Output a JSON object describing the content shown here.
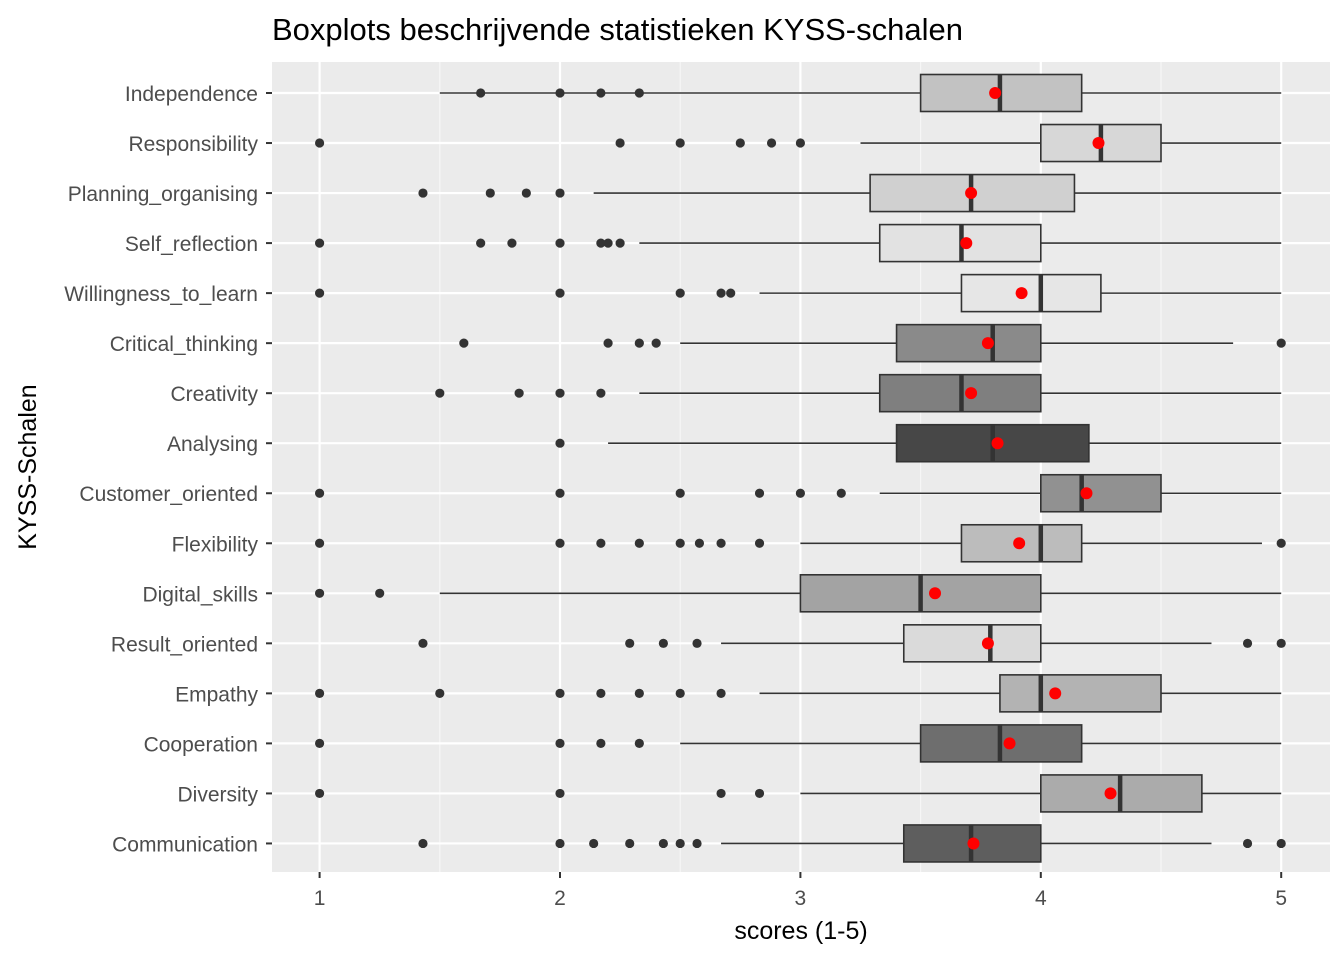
{
  "chart_data": {
    "type": "boxplot",
    "title": "Boxplots beschrijvende statistieken KYSS-schalen",
    "xlabel": "scores (1-5)",
    "ylabel": "KYSS-Schalen",
    "xlim": [
      0.8,
      5.2
    ],
    "xticks": [
      "1",
      "2",
      "3",
      "4",
      "5"
    ],
    "grid": true,
    "mean_marker_color": "#ff0000",
    "series": [
      {
        "name": "Independence",
        "whisker_low": 1.5,
        "q1": 3.5,
        "median": 3.83,
        "q3": 4.17,
        "whisker_high": 5.0,
        "mean": 3.81,
        "fill": "#c2c2c2",
        "outliers": [
          1.67,
          2.0,
          2.17,
          2.33
        ]
      },
      {
        "name": "Responsibility",
        "whisker_low": 3.25,
        "q1": 4.0,
        "median": 4.25,
        "q3": 4.5,
        "whisker_high": 5.0,
        "mean": 4.24,
        "fill": "#d7d7d7",
        "outliers": [
          1.0,
          2.25,
          2.5,
          2.75,
          2.88,
          3.0
        ]
      },
      {
        "name": "Planning_organising",
        "whisker_low": 2.14,
        "q1": 3.29,
        "median": 3.71,
        "q3": 4.14,
        "whisker_high": 5.0,
        "mean": 3.71,
        "fill": "#d0d0d0",
        "outliers": [
          1.43,
          1.71,
          1.86,
          2.0
        ]
      },
      {
        "name": "Self_reflection",
        "whisker_low": 2.33,
        "q1": 3.33,
        "median": 3.67,
        "q3": 4.0,
        "whisker_high": 5.0,
        "mean": 3.69,
        "fill": "#e2e2e2",
        "outliers": [
          1.0,
          1.67,
          1.8,
          2.0,
          2.17,
          2.2,
          2.25
        ]
      },
      {
        "name": "Willingness_to_learn",
        "whisker_low": 2.83,
        "q1": 3.67,
        "median": 4.0,
        "q3": 4.25,
        "whisker_high": 5.0,
        "mean": 3.92,
        "fill": "#e6e6e6",
        "outliers": [
          1.0,
          2.0,
          2.5,
          2.67,
          2.71
        ]
      },
      {
        "name": "Critical_thinking",
        "whisker_low": 2.5,
        "q1": 3.4,
        "median": 3.8,
        "q3": 4.0,
        "whisker_high": 4.8,
        "mean": 3.78,
        "fill": "#8a8a8a",
        "outliers": [
          1.6,
          2.2,
          2.33,
          2.4,
          5.0
        ]
      },
      {
        "name": "Creativity",
        "whisker_low": 2.33,
        "q1": 3.33,
        "median": 3.67,
        "q3": 4.0,
        "whisker_high": 5.0,
        "mean": 3.71,
        "fill": "#7f7f7f",
        "outliers": [
          1.5,
          1.83,
          2.0,
          2.17
        ]
      },
      {
        "name": "Analysing",
        "whisker_low": 2.2,
        "q1": 3.4,
        "median": 3.8,
        "q3": 4.2,
        "whisker_high": 5.0,
        "mean": 3.82,
        "fill": "#474747",
        "outliers": [
          2.0
        ]
      },
      {
        "name": "Customer_oriented",
        "whisker_low": 3.33,
        "q1": 4.0,
        "median": 4.17,
        "q3": 4.5,
        "whisker_high": 5.0,
        "mean": 4.19,
        "fill": "#919191",
        "outliers": [
          1.0,
          2.0,
          2.5,
          2.83,
          3.0,
          3.17
        ]
      },
      {
        "name": "Flexibility",
        "whisker_low": 3.0,
        "q1": 3.67,
        "median": 4.0,
        "q3": 4.17,
        "whisker_high": 4.92,
        "mean": 3.91,
        "fill": "#bcbcbc",
        "outliers": [
          1.0,
          2.0,
          2.17,
          2.33,
          2.5,
          2.58,
          2.67,
          2.83,
          5.0
        ]
      },
      {
        "name": "Digital_skills",
        "whisker_low": 1.5,
        "q1": 3.0,
        "median": 3.5,
        "q3": 4.0,
        "whisker_high": 5.0,
        "mean": 3.56,
        "fill": "#a3a3a3",
        "outliers": [
          1.0,
          1.25
        ]
      },
      {
        "name": "Result_oriented",
        "whisker_low": 2.67,
        "q1": 3.43,
        "median": 3.79,
        "q3": 4.0,
        "whisker_high": 4.71,
        "mean": 3.78,
        "fill": "#dadada",
        "outliers": [
          1.43,
          2.29,
          2.43,
          2.57,
          4.86,
          5.0
        ]
      },
      {
        "name": "Empathy",
        "whisker_low": 2.83,
        "q1": 3.83,
        "median": 4.0,
        "q3": 4.5,
        "whisker_high": 5.0,
        "mean": 4.06,
        "fill": "#b3b3b3",
        "outliers": [
          1.0,
          1.5,
          2.0,
          2.17,
          2.33,
          2.5,
          2.67
        ]
      },
      {
        "name": "Cooperation",
        "whisker_low": 2.5,
        "q1": 3.5,
        "median": 3.83,
        "q3": 4.17,
        "whisker_high": 5.0,
        "mean": 3.87,
        "fill": "#6e6e6e",
        "outliers": [
          1.0,
          2.0,
          2.17,
          2.33
        ]
      },
      {
        "name": "Diversity",
        "whisker_low": 3.0,
        "q1": 4.0,
        "median": 4.33,
        "q3": 4.67,
        "whisker_high": 5.0,
        "mean": 4.29,
        "fill": "#ababab",
        "outliers": [
          1.0,
          2.0,
          2.67,
          2.83
        ]
      },
      {
        "name": "Communication",
        "whisker_low": 2.67,
        "q1": 3.43,
        "median": 3.71,
        "q3": 4.0,
        "whisker_high": 4.71,
        "mean": 3.72,
        "fill": "#5e5e5e",
        "outliers": [
          1.43,
          2.0,
          2.14,
          2.29,
          2.43,
          2.5,
          2.57,
          4.86,
          5.0
        ]
      }
    ]
  }
}
